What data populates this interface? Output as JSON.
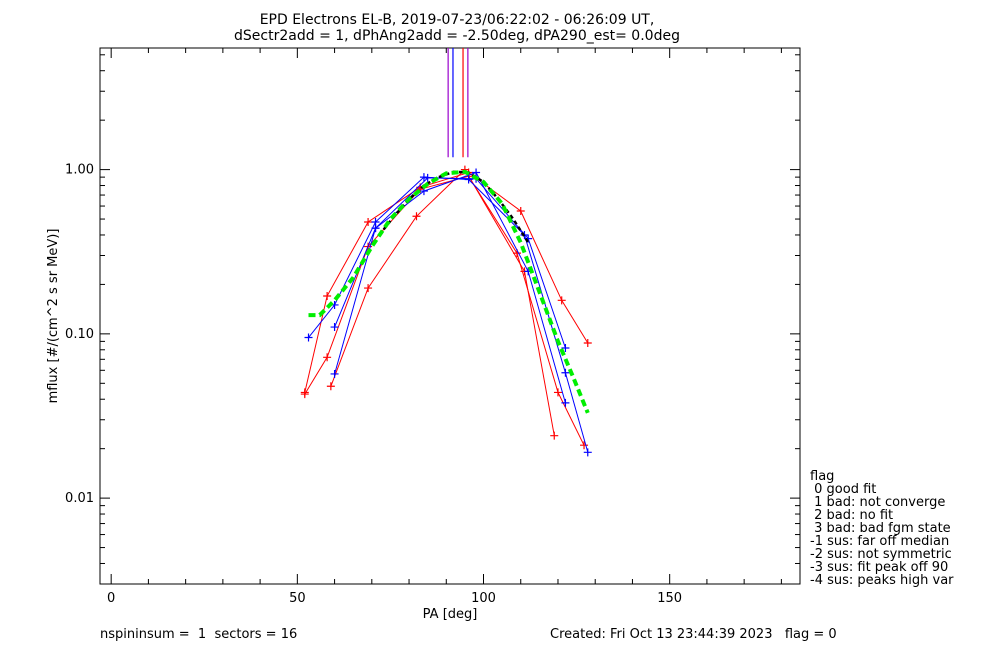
{
  "title_line1": "EPD Electrons EL-B, 2019-07-23/06:22:02 - 06:26:09 UT,",
  "title_line2": "dSectr2add = 1, dPhAng2add = -2.50deg, dPA290_est=   0.0deg",
  "footer_left": "nspininsum =  1  sectors = 16",
  "footer_right": "Created: Fri Oct 13 23:44:39 2023   flag = 0",
  "legend": {
    "title": "flag",
    "entries": [
      " 0 good fit",
      " 1 bad: not converge",
      " 2 bad: no fit",
      " 3 bad: bad fgm state",
      "-1 sus: far off median",
      "-2 sus: not symmetric",
      "-3 sus: fit peak off 90",
      "-4 sus: peaks high var"
    ]
  },
  "chart_data": {
    "type": "line",
    "xlabel": "PA [deg]",
    "ylabel": "mflux [#/(cm^2 s sr MeV)]",
    "xlim": [
      -3,
      185
    ],
    "ylim": [
      0.003,
      5.5
    ],
    "yscale": "log",
    "xticks": [
      0,
      50,
      100,
      150
    ],
    "yticks": [
      0.01,
      0.1,
      1.0
    ],
    "ytick_labels": [
      "0.01",
      "0.10",
      "1.00"
    ],
    "colors": {
      "red": "#ff0000",
      "blue": "#0000ff",
      "green": "#00ee00",
      "black": "#000000",
      "purple": "#9900cc"
    },
    "vertical_lines": [
      {
        "x": 90.5,
        "color": "#9900cc"
      },
      {
        "x": 91.8,
        "color": "#0000ff"
      },
      {
        "x": 94.5,
        "color": "#ff0000"
      },
      {
        "x": 95.8,
        "color": "#9900cc"
      }
    ],
    "series": [
      {
        "color": "#ff0000",
        "x": [
          52,
          58,
          69,
          83,
          96,
          110,
          121,
          128
        ],
        "y": [
          0.044,
          0.17,
          0.48,
          0.78,
          0.96,
          0.56,
          0.16,
          0.088
        ]
      },
      {
        "color": "#ff0000",
        "x": [
          52,
          58,
          69,
          83,
          96,
          109,
          120,
          127
        ],
        "y": [
          0.043,
          0.072,
          0.34,
          0.76,
          0.91,
          0.31,
          0.044,
          0.021
        ]
      },
      {
        "color": "#ff0000",
        "x": [
          59,
          69,
          82,
          95,
          111,
          119
        ],
        "y": [
          0.048,
          0.19,
          0.52,
          1.0,
          0.24,
          0.024
        ]
      },
      {
        "color": "#0000ff",
        "x": [
          53,
          60,
          71,
          84,
          96,
          111,
          122,
          128
        ],
        "y": [
          0.095,
          0.15,
          0.48,
          0.9,
          0.87,
          0.4,
          0.058,
          0.019
        ]
      },
      {
        "color": "#0000ff",
        "x": [
          60,
          71,
          84,
          98,
          112,
          122
        ],
        "y": [
          0.057,
          0.44,
          0.74,
          0.96,
          0.24,
          0.038
        ]
      },
      {
        "color": "#0000ff",
        "x": [
          60,
          71,
          85,
          98,
          112,
          122
        ],
        "y": [
          0.11,
          0.44,
          0.89,
          0.88,
          0.38,
          0.082
        ]
      }
    ],
    "fits": [
      {
        "style": "dashed",
        "color": "#000000",
        "x": [
          72,
          76,
          80,
          84,
          88,
          92,
          96,
          100,
          104,
          108,
          112
        ],
        "y": [
          0.4,
          0.52,
          0.66,
          0.8,
          0.9,
          0.97,
          0.96,
          0.84,
          0.66,
          0.5,
          0.36
        ]
      },
      {
        "style": "dashed",
        "color": "#00ee00",
        "x": [
          53,
          56,
          60,
          65,
          70,
          75,
          80,
          85,
          90,
          95,
          100,
          105,
          110,
          115,
          120,
          124,
          128
        ],
        "y": [
          0.13,
          0.13,
          0.16,
          0.22,
          0.34,
          0.5,
          0.66,
          0.82,
          0.95,
          0.97,
          0.84,
          0.62,
          0.36,
          0.18,
          0.09,
          0.055,
          0.033
        ]
      }
    ]
  }
}
